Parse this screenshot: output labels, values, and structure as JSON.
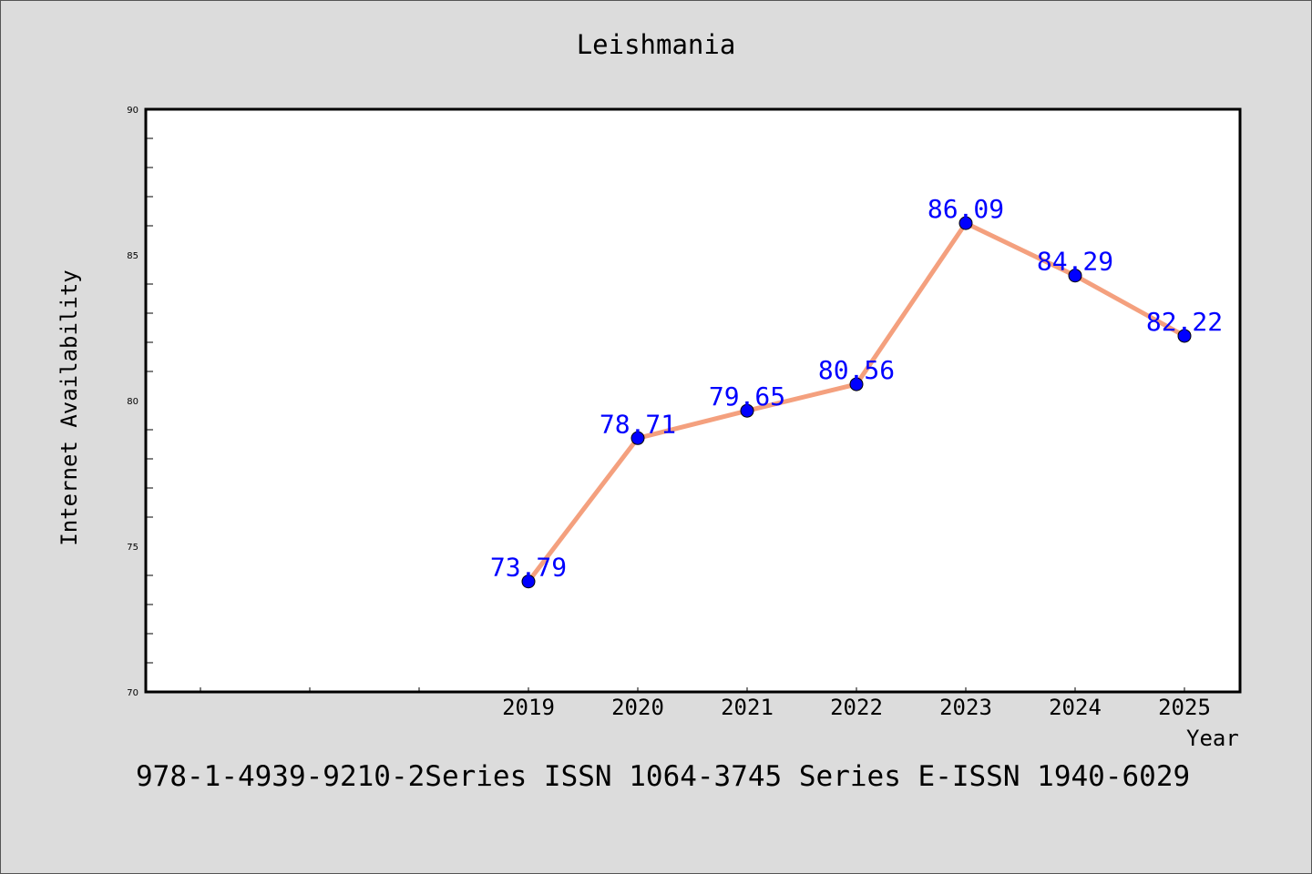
{
  "chart_data": {
    "type": "line",
    "title": "Leishmania",
    "xlabel": "Year",
    "ylabel": "Internet Availability",
    "x": [
      "2019",
      "2020",
      "2021",
      "2022",
      "2023",
      "2024",
      "2025"
    ],
    "series": [
      {
        "values": [
          73.79,
          78.71,
          79.65,
          80.56,
          86.09,
          84.29,
          82.22
        ],
        "labels": [
          "73.79",
          "78.71",
          "79.65",
          "80.56",
          "86.09",
          "84.29",
          "82.22"
        ]
      }
    ],
    "ylim": [
      70,
      90
    ],
    "yticks": [
      70,
      75,
      80,
      85,
      90
    ],
    "ytick_labels": [
      "70",
      "75",
      "80",
      "85",
      "90"
    ],
    "grid": false,
    "colors": {
      "line": "#f4a07e",
      "marker": "#0000ff",
      "data_label": "#0000ff",
      "plot_background": "#ffffff",
      "page_background": "#dcdcdc"
    }
  },
  "footer": {
    "text": "978-1-4939-9210-2Series ISSN 1064-3745 Series E-ISSN 1940-6029"
  }
}
